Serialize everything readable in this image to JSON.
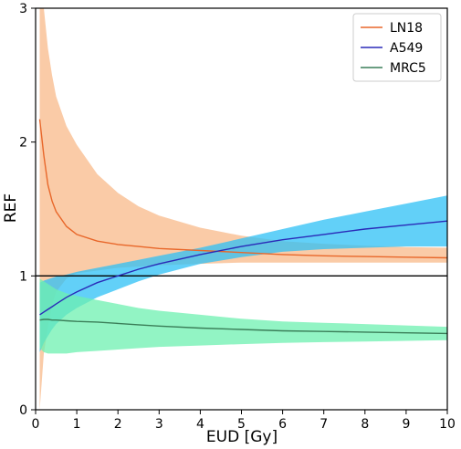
{
  "chart_data": {
    "type": "line",
    "title": "",
    "xlabel": "EUD [Gy]",
    "ylabel": "REF",
    "xlim": [
      0,
      10
    ],
    "ylim": [
      0,
      3
    ],
    "xticks": [
      0,
      1,
      2,
      3,
      4,
      5,
      6,
      7,
      8,
      9,
      10
    ],
    "yticks": [
      0,
      1,
      2,
      3
    ],
    "reference_line": 1,
    "grid": false,
    "legend_position": "top-right",
    "x": [
      0.1,
      0.2,
      0.3,
      0.4,
      0.5,
      0.75,
      1,
      1.5,
      2,
      2.5,
      3,
      4,
      5,
      6,
      7,
      8,
      9,
      10
    ],
    "series": [
      {
        "name": "LN18",
        "line_color": "#e8672a",
        "band_color": "#f8b98a",
        "mean": [
          2.17,
          1.9,
          1.68,
          1.56,
          1.48,
          1.37,
          1.31,
          1.26,
          1.235,
          1.22,
          1.205,
          1.19,
          1.175,
          1.16,
          1.15,
          1.145,
          1.14,
          1.135
        ],
        "upper": [
          3.3,
          3.0,
          2.7,
          2.5,
          2.34,
          2.12,
          1.98,
          1.76,
          1.62,
          1.52,
          1.45,
          1.36,
          1.3,
          1.26,
          1.24,
          1.225,
          1.215,
          1.21
        ],
        "lower": [
          0.0,
          0.42,
          0.62,
          0.78,
          0.88,
          0.98,
          1.02,
          1.04,
          1.06,
          1.07,
          1.08,
          1.09,
          1.1,
          1.1,
          1.1,
          1.1,
          1.1,
          1.1
        ]
      },
      {
        "name": "A549",
        "line_color": "#2a2ab8",
        "band_color": "#2ec0f5",
        "mean": [
          0.71,
          0.73,
          0.75,
          0.77,
          0.79,
          0.84,
          0.88,
          0.95,
          1.0,
          1.05,
          1.09,
          1.16,
          1.22,
          1.27,
          1.31,
          1.35,
          1.38,
          1.41
        ],
        "upper": [
          0.95,
          0.965,
          0.975,
          0.985,
          0.995,
          1.01,
          1.03,
          1.06,
          1.09,
          1.12,
          1.15,
          1.21,
          1.28,
          1.35,
          1.42,
          1.48,
          1.54,
          1.6
        ],
        "lower": [
          0.43,
          0.5,
          0.55,
          0.6,
          0.64,
          0.71,
          0.76,
          0.84,
          0.9,
          0.96,
          1.01,
          1.09,
          1.14,
          1.18,
          1.2,
          1.21,
          1.22,
          1.22
        ]
      },
      {
        "name": "MRC5",
        "line_color": "#3a7e58",
        "band_color": "#6ef0b0",
        "mean": [
          0.67,
          0.675,
          0.675,
          0.67,
          0.67,
          0.665,
          0.66,
          0.655,
          0.645,
          0.635,
          0.625,
          0.61,
          0.6,
          0.59,
          0.585,
          0.58,
          0.575,
          0.57
        ],
        "upper": [
          0.98,
          0.96,
          0.94,
          0.92,
          0.9,
          0.87,
          0.85,
          0.82,
          0.79,
          0.76,
          0.74,
          0.71,
          0.68,
          0.66,
          0.65,
          0.64,
          0.63,
          0.62
        ],
        "lower": [
          0.46,
          0.43,
          0.42,
          0.42,
          0.42,
          0.42,
          0.43,
          0.44,
          0.45,
          0.46,
          0.47,
          0.48,
          0.49,
          0.5,
          0.505,
          0.51,
          0.515,
          0.52
        ]
      }
    ]
  }
}
